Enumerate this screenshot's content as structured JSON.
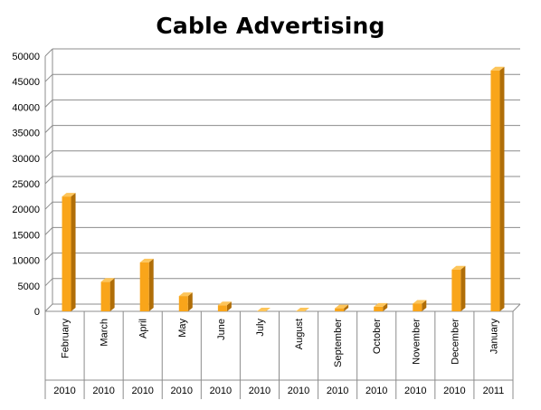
{
  "chart_data": {
    "type": "bar",
    "title": "Cable Advertising",
    "categories": [
      "February",
      "March",
      "April",
      "May",
      "June",
      "July",
      "August",
      "September",
      "October",
      "November",
      "December",
      "January"
    ],
    "years": [
      "2010",
      "2010",
      "2010",
      "2010",
      "2010",
      "2010",
      "2010",
      "2010",
      "2010",
      "2010",
      "2010",
      "2011"
    ],
    "values": [
      22500,
      5800,
      9600,
      3000,
      1200,
      0,
      0,
      600,
      900,
      1500,
      8200,
      47200
    ],
    "ylim": [
      0,
      50000
    ],
    "yticks": [
      "0",
      "5000",
      "10000",
      "15000",
      "20000",
      "25000",
      "30000",
      "35000",
      "40000",
      "45000",
      "50000"
    ],
    "xlabel": "",
    "ylabel": "",
    "grid": true,
    "legend": "none",
    "colors": {
      "bar_front": "#F9A51A",
      "bar_side": "#B06E08",
      "bar_top": "#FDC55A",
      "grid": "#8C8C8C",
      "axis": "#8C8C8C"
    }
  }
}
